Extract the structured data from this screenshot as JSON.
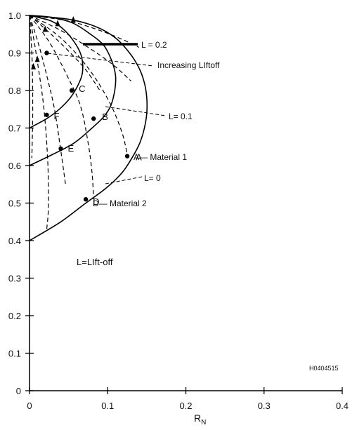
{
  "chart_data": {
    "type": "line",
    "xlabel": "R",
    "xlabel_sub": "N",
    "ylabel": "",
    "xlim": [
      0,
      0.4
    ],
    "ylim": [
      0,
      1.0
    ],
    "x_ticks": [
      0,
      0.1,
      0.2,
      0.3,
      0.4
    ],
    "x_tick_labels": [
      "0",
      "0.1",
      "0.2",
      "0.3",
      "0.4"
    ],
    "y_ticks": [
      0,
      0.1,
      0.2,
      0.3,
      0.4,
      0.5,
      0.6,
      0.7,
      0.8,
      0.9,
      1.0
    ],
    "y_tick_labels": [
      "0",
      "0.1",
      "0.2",
      "0.3",
      "0.4",
      "0.5",
      "0.6",
      "0.7",
      "0.8",
      "0.9",
      "1.0"
    ],
    "grid": false,
    "solid_curves": [
      {
        "points": [
          [
            0,
            0.4
          ],
          [
            0.04,
            0.45
          ],
          [
            0.072,
            0.5
          ],
          [
            0.098,
            0.54
          ],
          [
            0.118,
            0.58
          ],
          [
            0.131,
            0.62
          ],
          [
            0.141,
            0.66
          ],
          [
            0.147,
            0.7
          ],
          [
            0.15,
            0.74
          ],
          [
            0.15,
            0.78
          ],
          [
            0.147,
            0.82
          ],
          [
            0.14,
            0.86
          ],
          [
            0.128,
            0.9
          ],
          [
            0.11,
            0.94
          ],
          [
            0.085,
            0.97
          ],
          [
            0.05,
            0.99
          ],
          [
            0,
            1.0
          ]
        ]
      },
      {
        "points": [
          [
            0,
            0.6
          ],
          [
            0.03,
            0.63
          ],
          [
            0.057,
            0.66
          ],
          [
            0.08,
            0.7
          ],
          [
            0.095,
            0.73
          ],
          [
            0.104,
            0.76
          ],
          [
            0.109,
            0.8
          ],
          [
            0.11,
            0.84
          ],
          [
            0.105,
            0.88
          ],
          [
            0.095,
            0.92
          ],
          [
            0.078,
            0.95
          ],
          [
            0.055,
            0.98
          ],
          [
            0.028,
            0.995
          ],
          [
            0,
            1.0
          ]
        ]
      },
      {
        "points": [
          [
            0,
            0.7
          ],
          [
            0.022,
            0.725
          ],
          [
            0.038,
            0.75
          ],
          [
            0.052,
            0.78
          ],
          [
            0.061,
            0.81
          ],
          [
            0.067,
            0.84
          ],
          [
            0.068,
            0.87
          ],
          [
            0.065,
            0.9
          ],
          [
            0.057,
            0.93
          ],
          [
            0.045,
            0.96
          ],
          [
            0.028,
            0.985
          ],
          [
            0,
            1.0
          ]
        ]
      }
    ],
    "dashed_curves": [
      {
        "points": [
          [
            0,
            1.0
          ],
          [
            0.04,
            0.94
          ],
          [
            0.075,
            0.86
          ],
          [
            0.102,
            0.77
          ],
          [
            0.118,
            0.69
          ],
          [
            0.125,
            0.63
          ]
        ]
      },
      {
        "points": [
          [
            0,
            1.0
          ],
          [
            0.025,
            0.93
          ],
          [
            0.048,
            0.84
          ],
          [
            0.065,
            0.76
          ],
          [
            0.075,
            0.66
          ],
          [
            0.08,
            0.58
          ],
          [
            0.082,
            0.51
          ]
        ]
      },
      {
        "points": [
          [
            0,
            1.0
          ],
          [
            0.012,
            0.92
          ],
          [
            0.022,
            0.84
          ],
          [
            0.032,
            0.75
          ],
          [
            0.04,
            0.64
          ],
          [
            0.046,
            0.55
          ]
        ]
      },
      {
        "points": [
          [
            0,
            1.0
          ],
          [
            0.006,
            0.93
          ],
          [
            0.012,
            0.85
          ],
          [
            0.018,
            0.76
          ],
          [
            0.022,
            0.66
          ],
          [
            0.024,
            0.57
          ],
          [
            0.024,
            0.48
          ],
          [
            0.022,
            0.43
          ]
        ]
      },
      {
        "points": [
          [
            0,
            1.0
          ],
          [
            0.003,
            0.9
          ],
          [
            0.004,
            0.8
          ],
          [
            0.004,
            0.72
          ],
          [
            0.003,
            0.62
          ]
        ]
      },
      {
        "points": [
          [
            0,
            1.0
          ],
          [
            0.05,
            0.985
          ],
          [
            0.09,
            0.96
          ],
          [
            0.12,
            0.935
          ],
          [
            0.14,
            0.915
          ]
        ]
      },
      {
        "points": [
          [
            0,
            1.0
          ],
          [
            0.04,
            0.96
          ],
          [
            0.075,
            0.915
          ],
          [
            0.106,
            0.87
          ],
          [
            0.13,
            0.825
          ]
        ]
      },
      {
        "points": [
          [
            0,
            1.0
          ],
          [
            0.025,
            0.955
          ],
          [
            0.05,
            0.905
          ],
          [
            0.072,
            0.855
          ],
          [
            0.09,
            0.8
          ]
        ]
      }
    ],
    "arrows_on_dashed": [
      {
        "x": 0.005,
        "y": 0.86
      },
      {
        "x": 0.01,
        "y": 0.88
      },
      {
        "x": 0.02,
        "y": 0.96
      },
      {
        "x": 0.036,
        "y": 0.975
      },
      {
        "x": 0.056,
        "y": 0.985
      }
    ],
    "points": [
      {
        "label": "A",
        "x": 0.125,
        "y": 0.625,
        "dx": 12,
        "dy": 6
      },
      {
        "label": "B",
        "x": 0.082,
        "y": 0.725,
        "dx": 12,
        "dy": 2
      },
      {
        "label": "C",
        "x": 0.054,
        "y": 0.8,
        "dx": 10,
        "dy": 2
      },
      {
        "label": "D",
        "x": 0.072,
        "y": 0.51,
        "dx": 10,
        "dy": 8
      },
      {
        "label": "E",
        "x": 0.04,
        "y": 0.645,
        "dx": 10,
        "dy": 4
      },
      {
        "label": "F",
        "x": 0.022,
        "y": 0.735,
        "dx": 10,
        "dy": 6
      },
      {
        "label": "",
        "x": 0.022,
        "y": 0.9,
        "dx": 0,
        "dy": 0
      }
    ],
    "annotations": {
      "l02": "L = 0.2",
      "increasing": "Increasing LIftoff",
      "l01": "L= 0.1",
      "material1": "A— Material 1",
      "l0": "L= 0",
      "material2": "D— Material 2",
      "legend": "L=LIft-off",
      "code": "H0404515"
    }
  }
}
